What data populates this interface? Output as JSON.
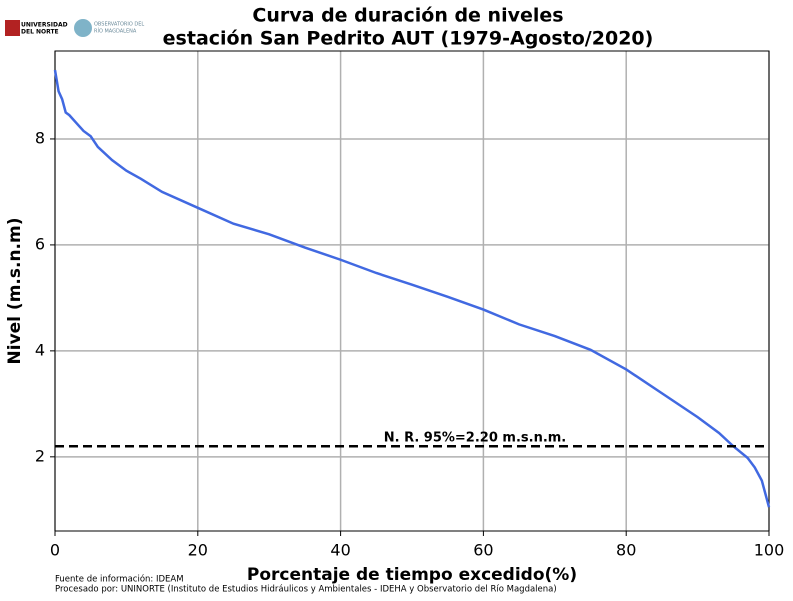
{
  "chart_data": {
    "type": "line",
    "title": [
      "Curva de duración de niveles",
      "estación San Pedrito AUT (1979-Agosto/2020)"
    ],
    "xlabel": "Porcentaje de tiempo excedido(%)",
    "ylabel": "Nivel (m.s.n.m)",
    "x": [
      0,
      0.5,
      1,
      1.5,
      2,
      3,
      4,
      5,
      6,
      8,
      10,
      12,
      15,
      20,
      25,
      30,
      35,
      40,
      45,
      50,
      55,
      60,
      65,
      70,
      75,
      80,
      85,
      90,
      93,
      95,
      97,
      98,
      99,
      99.5,
      100
    ],
    "series": [
      {
        "name": "Nivel",
        "color": "#4169e1",
        "values": [
          9.3,
          8.9,
          8.75,
          8.5,
          8.45,
          8.3,
          8.15,
          8.05,
          7.85,
          7.6,
          7.4,
          7.25,
          7.0,
          6.7,
          6.4,
          6.2,
          5.95,
          5.72,
          5.47,
          5.25,
          5.02,
          4.78,
          4.5,
          4.28,
          4.02,
          3.65,
          3.2,
          2.75,
          2.45,
          2.2,
          1.98,
          1.8,
          1.55,
          1.3,
          1.05
        ]
      }
    ],
    "hline": {
      "value": 2.2,
      "label": "N. R. 95%=2.20 m.s.n.m.",
      "color": "#000000"
    },
    "xlim": [
      0,
      100
    ],
    "xticks": [
      0,
      20,
      40,
      60,
      80,
      100
    ],
    "ylim": [
      0.6,
      9.66
    ],
    "yticks": [
      2,
      4,
      6,
      8
    ],
    "grid": true
  },
  "logos": [
    "UNIVERSIDAD",
    "DEL NORTE",
    "OBSERVATORIO DEL",
    "RÍO MAGDALENA"
  ],
  "notes": [
    "Fuente de información: IDEAM",
    "Procesado por: UNINORTE (Instituto de Estudios Hidráulicos y Ambientales - IDEHA y Observatorio del Río Magdalena)"
  ]
}
